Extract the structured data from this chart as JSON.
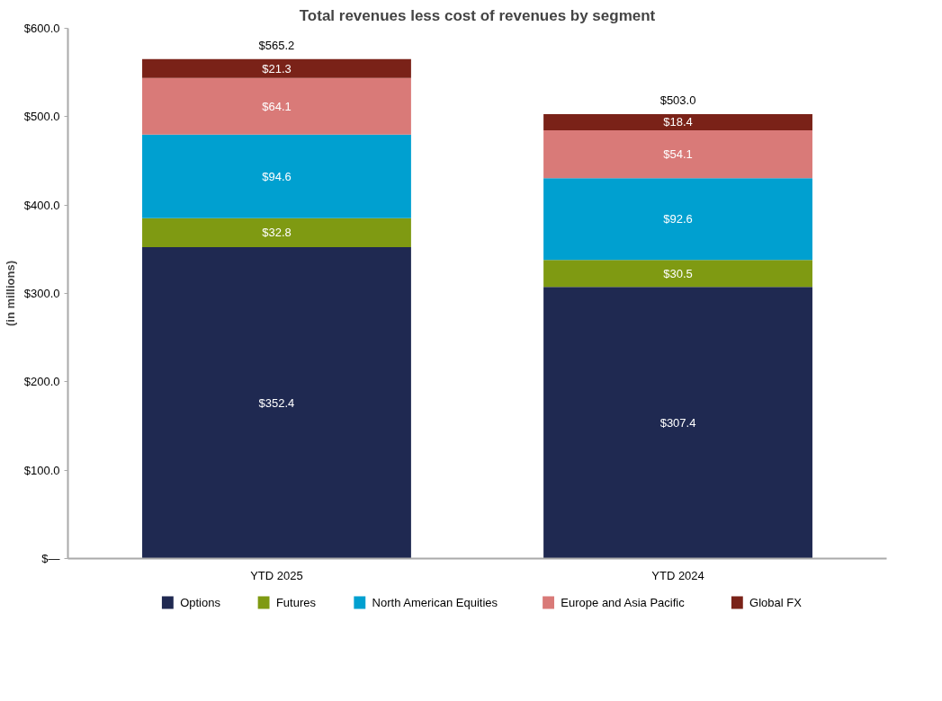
{
  "chart_data": {
    "type": "bar",
    "title": "Total revenues less cost of revenues by segment",
    "ylabel": "(in millions)",
    "categories": [
      "YTD 2025",
      "YTD 2024"
    ],
    "stacked": true,
    "series": [
      {
        "name": "Options",
        "color": "#1f2951",
        "values": [
          352.4,
          307.4
        ],
        "value_labels": [
          "$352.4",
          "$307.4"
        ]
      },
      {
        "name": "Futures",
        "color": "#7f9a12",
        "values": [
          32.8,
          30.5
        ],
        "value_labels": [
          "$32.8",
          "$30.5"
        ]
      },
      {
        "name": "North American Equities",
        "color": "#00a0d0",
        "values": [
          94.6,
          92.6
        ],
        "value_labels": [
          "$94.6",
          "$92.6"
        ]
      },
      {
        "name": "Europe and Asia Pacific",
        "color": "#d97a78",
        "values": [
          64.1,
          54.1
        ],
        "value_labels": [
          "$64.1",
          "$54.1"
        ]
      },
      {
        "name": "Global FX",
        "color": "#7a2218",
        "values": [
          21.3,
          18.4
        ],
        "value_labels": [
          "$21.3",
          "$18.4"
        ]
      }
    ],
    "totals": [
      "$565.2",
      "$503.0"
    ],
    "ylim": [
      0,
      600
    ],
    "yticks": [
      {
        "value": 0,
        "label": "$—"
      },
      {
        "value": 100,
        "label": "$100.0"
      },
      {
        "value": 200,
        "label": "$200.0"
      },
      {
        "value": 300,
        "label": "$300.0"
      },
      {
        "value": 400,
        "label": "$400.0"
      },
      {
        "value": 500,
        "label": "$500.0"
      },
      {
        "value": 600,
        "label": "$600.0"
      }
    ],
    "grid": false,
    "legend": "bottom"
  }
}
